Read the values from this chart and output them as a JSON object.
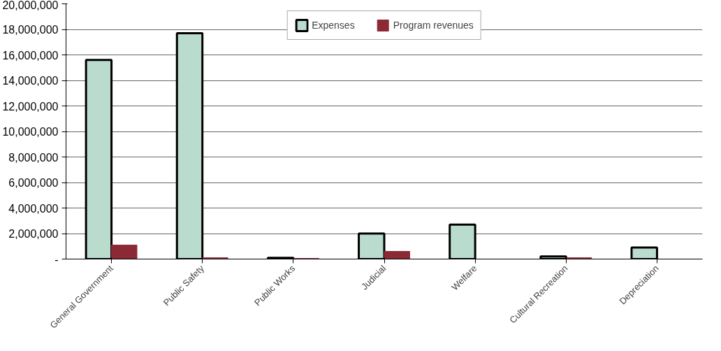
{
  "chart_data": {
    "type": "bar",
    "categories": [
      "General Government",
      "Public Safety",
      "Public Works",
      "Judicial",
      "Welfare",
      "Cultural Recreation",
      "Depreciation"
    ],
    "series": [
      {
        "name": "Expenses",
        "color": "#b9dccf",
        "values": [
          15600000,
          17700000,
          100000,
          2000000,
          2700000,
          200000,
          900000
        ]
      },
      {
        "name": "Program revenues",
        "color": "#8b2a35",
        "values": [
          1100000,
          100000,
          50000,
          600000,
          0,
          100000,
          0
        ]
      }
    ],
    "ylim": [
      0,
      20000000
    ],
    "yticks": [
      {
        "value": 0,
        "label": "-"
      },
      {
        "value": 2000000,
        "label": "2,000,000"
      },
      {
        "value": 4000000,
        "label": "4,000,000"
      },
      {
        "value": 6000000,
        "label": "6,000,000"
      },
      {
        "value": 8000000,
        "label": "8,000,000"
      },
      {
        "value": 10000000,
        "label": "10,000,000"
      },
      {
        "value": 12000000,
        "label": "12,000,000"
      },
      {
        "value": 14000000,
        "label": "14,000,000"
      },
      {
        "value": 16000000,
        "label": "16,000,000"
      },
      {
        "value": 18000000,
        "label": "18,000,000"
      },
      {
        "value": 20000000,
        "label": "20,000,000"
      }
    ],
    "grid": "y",
    "legend": "top"
  }
}
